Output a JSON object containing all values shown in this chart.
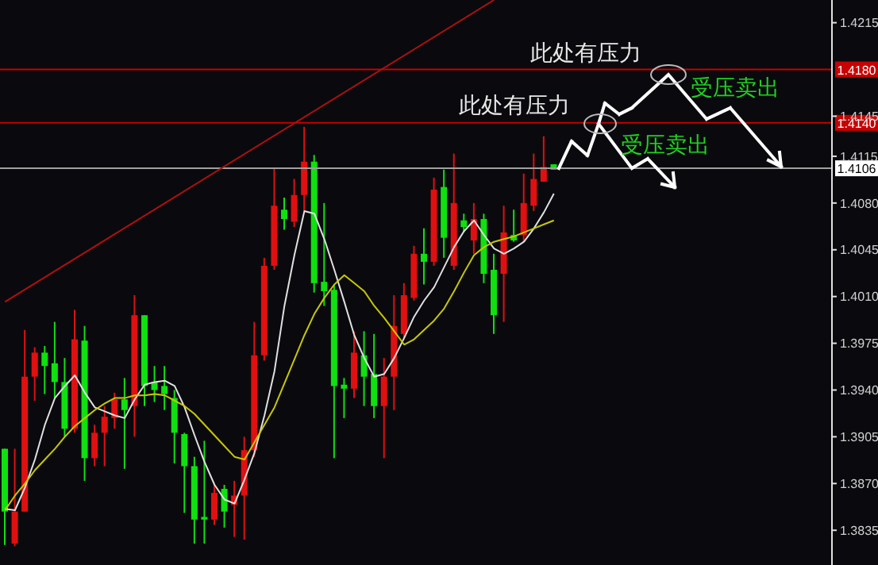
{
  "chart_data": {
    "type": "candlestick",
    "categories": [
      null,
      null,
      null,
      null,
      null,
      null,
      null,
      null,
      null,
      null,
      null,
      null,
      null,
      null,
      null,
      null,
      null,
      null,
      null,
      null,
      null,
      null,
      null,
      null,
      null,
      null,
      null,
      null,
      null,
      null,
      null,
      null,
      null,
      null,
      null,
      null,
      null,
      null,
      null,
      null,
      null,
      null,
      null,
      null,
      null,
      null,
      null,
      null,
      null,
      null,
      null,
      null,
      null,
      null,
      null,
      null
    ],
    "ohlc": [
      [
        1.3896,
        1.3896,
        1.3824,
        1.3849
      ],
      [
        1.3825,
        1.3896,
        1.3823,
        1.3849
      ],
      [
        1.3849,
        1.3985,
        1.3849,
        1.395
      ],
      [
        1.395,
        1.3972,
        1.3932,
        1.3968
      ],
      [
        1.3968,
        1.3973,
        1.3937,
        1.3958
      ],
      [
        1.396,
        1.3991,
        1.3934,
        1.3946
      ],
      [
        1.3946,
        1.3964,
        1.3905,
        1.3911
      ],
      [
        1.3911,
        1.4,
        1.3908,
        1.3978
      ],
      [
        1.3977,
        1.3988,
        1.3872,
        1.3889
      ],
      [
        1.3889,
        1.3914,
        1.3883,
        1.3908
      ],
      [
        1.3908,
        1.3928,
        1.3883,
        1.392
      ],
      [
        1.3919,
        1.3938,
        1.3911,
        1.3933
      ],
      [
        1.3933,
        1.3949,
        1.3881,
        1.3925
      ],
      [
        1.3928,
        1.4011,
        1.3905,
        1.3996
      ],
      [
        1.3996,
        1.3996,
        1.3928,
        1.3943
      ],
      [
        1.3946,
        1.3958,
        1.3931,
        1.394
      ],
      [
        1.3943,
        1.3958,
        1.3925,
        1.3937
      ],
      [
        1.3934,
        1.394,
        1.3885,
        1.3908
      ],
      [
        1.3907,
        1.3908,
        1.3848,
        1.3883
      ],
      [
        1.3883,
        1.389,
        1.3825,
        1.3843
      ],
      [
        1.3845,
        1.3902,
        1.3825,
        1.3843
      ],
      [
        1.3843,
        1.3869,
        1.3839,
        1.3863
      ],
      [
        1.3866,
        1.3869,
        1.3837,
        1.3849
      ],
      [
        1.3854,
        1.3872,
        1.383,
        1.3861
      ],
      [
        1.3861,
        1.3905,
        1.3828,
        1.3895
      ],
      [
        1.3895,
        1.3991,
        1.389,
        1.3966
      ],
      [
        1.3966,
        1.4039,
        1.3962,
        1.4033
      ],
      [
        1.4033,
        1.4106,
        1.403,
        1.4078
      ],
      [
        1.4075,
        1.4084,
        1.406,
        1.4068
      ],
      [
        1.4066,
        1.4098,
        1.4062,
        1.4086
      ],
      [
        1.4086,
        1.4137,
        1.4074,
        1.4111
      ],
      [
        1.4111,
        1.4116,
        1.4013,
        1.402
      ],
      [
        1.4021,
        1.408,
        1.4003,
        1.4014
      ],
      [
        1.4015,
        1.4019,
        1.3889,
        1.3943
      ],
      [
        1.3944,
        1.3949,
        1.3919,
        1.3941
      ],
      [
        1.3941,
        1.3984,
        1.3934,
        1.3968
      ],
      [
        1.3966,
        1.3984,
        1.3928,
        1.395
      ],
      [
        1.3952,
        1.3982,
        1.3919,
        1.3928
      ],
      [
        1.3928,
        1.3964,
        1.3889,
        1.395
      ],
      [
        1.395,
        1.4011,
        1.3925,
        1.3988
      ],
      [
        1.3982,
        1.402,
        1.3979,
        1.4011
      ],
      [
        1.4009,
        1.4048,
        1.4007,
        1.4042
      ],
      [
        1.4042,
        1.4061,
        1.4019,
        1.4036
      ],
      [
        1.4036,
        1.4099,
        1.4033,
        1.409
      ],
      [
        1.4092,
        1.4105,
        1.4039,
        1.4054
      ],
      [
        1.4033,
        1.4117,
        1.403,
        1.408
      ],
      [
        1.4067,
        1.4072,
        1.4058,
        1.4062
      ],
      [
        1.4052,
        1.408,
        1.4042,
        1.4068
      ],
      [
        1.4068,
        1.4072,
        1.402,
        1.4027
      ],
      [
        1.403,
        1.4042,
        1.3982,
        1.3996
      ],
      [
        1.4027,
        1.4078,
        1.3991,
        1.4058
      ],
      [
        1.4056,
        1.4075,
        1.4051,
        1.4052
      ],
      [
        1.4056,
        1.4102,
        1.4051,
        1.408
      ],
      [
        1.4078,
        1.4117,
        1.4074,
        1.4098
      ],
      [
        1.4096,
        1.413,
        1.4096,
        1.4107
      ],
      [
        1.4109,
        1.4109,
        1.4105,
        1.4105
      ]
    ],
    "colors": [
      "#10e010",
      "#e01010",
      "#e01010",
      "#e01010",
      "#10e010",
      "#10e010",
      "#10e010",
      "#e01010",
      "#10e010",
      "#e01010",
      "#e01010",
      "#e01010",
      "#10e010",
      "#e01010",
      "#10e010",
      "#10e010",
      "#10e010",
      "#10e010",
      "#10e010",
      "#10e010",
      "#10e010",
      "#e01010",
      "#10e010",
      "#e01010",
      "#e01010",
      "#e01010",
      "#e01010",
      "#e01010",
      "#10e010",
      "#e01010",
      "#e01010",
      "#10e010",
      "#10e010",
      "#10e010",
      "#10e010",
      "#e01010",
      "#10e010",
      "#10e010",
      "#e01010",
      "#e01010",
      "#e01010",
      "#e01010",
      "#10e010",
      "#e01010",
      "#10e010",
      "#e01010",
      "#10e010",
      "#e01010",
      "#10e010",
      "#10e010",
      "#e01010",
      "#10e010",
      "#e01010",
      "#e01010",
      "#e01010",
      "#10e010"
    ],
    "series": [
      {
        "type": "line",
        "color": "#e0e0e0",
        "values": [
          1.3851,
          1.385,
          1.3867,
          1.3888,
          1.3914,
          1.3934,
          1.3943,
          1.3951,
          1.3938,
          1.3927,
          1.3924,
          1.3921,
          1.3919,
          1.3933,
          1.3944,
          1.3946,
          1.3947,
          1.3943,
          1.3927,
          1.3906,
          1.3886,
          1.3869,
          1.3858,
          1.3855,
          1.3873,
          1.3893,
          1.3921,
          1.3954,
          1.4003,
          1.4041,
          1.4074,
          1.4072,
          1.4053,
          1.403,
          1.4006,
          1.3981,
          1.3964,
          1.395,
          1.3952,
          1.3964,
          1.3979,
          1.3995,
          1.4007,
          1.4017,
          1.4032,
          1.4047,
          1.4059,
          1.4067,
          1.4056,
          1.4046,
          1.4042,
          1.4046,
          1.4051,
          1.4061,
          1.4073,
          1.4087
        ]
      },
      {
        "type": "line",
        "color": "#c8c800",
        "values": [
          1.385,
          1.3861,
          1.387,
          1.388,
          1.3888,
          1.3896,
          1.3905,
          1.3913,
          1.3919,
          1.3925,
          1.393,
          1.3934,
          1.3934,
          1.3936,
          1.3936,
          1.3937,
          1.3936,
          1.3932,
          1.3928,
          1.3922,
          1.3914,
          1.3906,
          1.3898,
          1.389,
          1.3888,
          1.3901,
          1.3914,
          1.3927,
          1.3945,
          1.3963,
          1.3981,
          1.3997,
          1.4009,
          1.4019,
          1.4026,
          1.402,
          1.4014,
          1.4003,
          1.3994,
          1.3984,
          1.3974,
          1.3978,
          1.3985,
          1.3992,
          1.4001,
          1.4014,
          1.4028,
          1.4041,
          1.4047,
          1.4051,
          1.4053,
          1.4055,
          1.4058,
          1.4061,
          1.4064,
          1.4067
        ]
      },
      {
        "type": "line",
        "color": "#b01010",
        "values": [
          1.4006,
          null,
          null,
          null,
          null,
          null,
          null,
          null,
          null,
          null,
          null,
          null,
          null,
          null,
          null,
          null,
          null,
          null,
          null,
          null,
          null,
          null,
          null,
          null,
          null,
          null,
          null,
          null,
          null,
          null,
          null,
          null,
          null,
          null,
          null,
          null,
          null,
          null,
          null,
          null,
          null,
          null,
          null,
          null,
          null,
          null,
          null,
          null,
          null,
          1.4232,
          null,
          null,
          null,
          null,
          null,
          null
        ]
      }
    ],
    "ylim": [
      1.3809,
      1.4232
    ],
    "yticks": [
      1.4215,
      1.4145,
      1.4115,
      {
        "value": 1.408,
        "label": "1.4080"
      },
      1.4045,
      {
        "value": 1.401,
        "label": "1.4010"
      },
      1.3975,
      {
        "value": 1.394,
        "label": "1.3940"
      },
      1.3905,
      {
        "value": 1.387,
        "label": "1.3870"
      },
      1.3835
    ],
    "ref_lines": [
      {
        "axis": "y",
        "value": 1.418,
        "label": "1.4180",
        "color": "#c80000"
      },
      {
        "axis": "y",
        "value": 1.414,
        "label": "1.4140",
        "color": "#c80000"
      },
      {
        "axis": "y",
        "value": 1.4106,
        "label": "1.4106",
        "color": "#a0a0a0"
      }
    ],
    "annotations": [
      "此处有压力",
      "此处有压力",
      "受压卖出",
      "受压卖出"
    ],
    "tick_labels": "y",
    "grid": false,
    "legend": false,
    "marker": "none"
  }
}
